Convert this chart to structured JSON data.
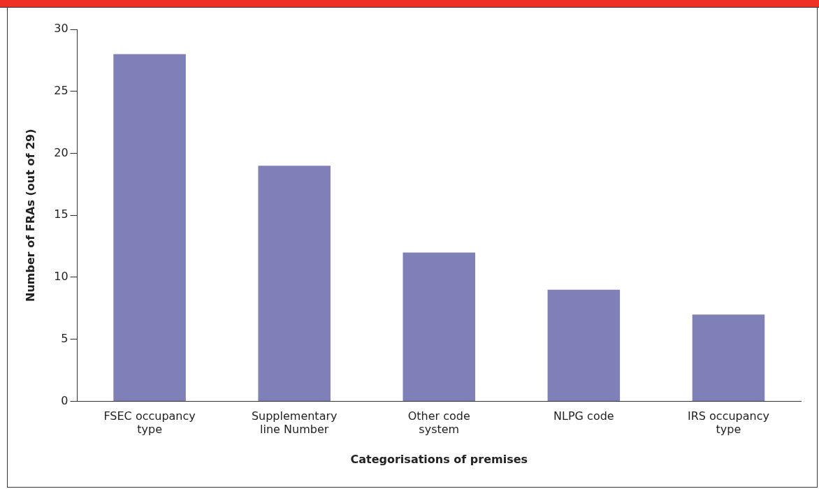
{
  "chart_data": {
    "type": "bar",
    "xlabel": "Categorisations of premises",
    "ylabel": "Number of FRAs (out of 29)",
    "categories": [
      "FSEC occupancy type",
      "Supplementary line Number",
      "Other code system",
      "NLPG code",
      "IRS occupancy type"
    ],
    "values": [
      28,
      19,
      12,
      9,
      7
    ],
    "color": "#8080b8",
    "ylim": [
      0,
      30
    ],
    "yticks": [
      0,
      5,
      10,
      15,
      20,
      25,
      30
    ],
    "grid": false,
    "legend": false
  }
}
